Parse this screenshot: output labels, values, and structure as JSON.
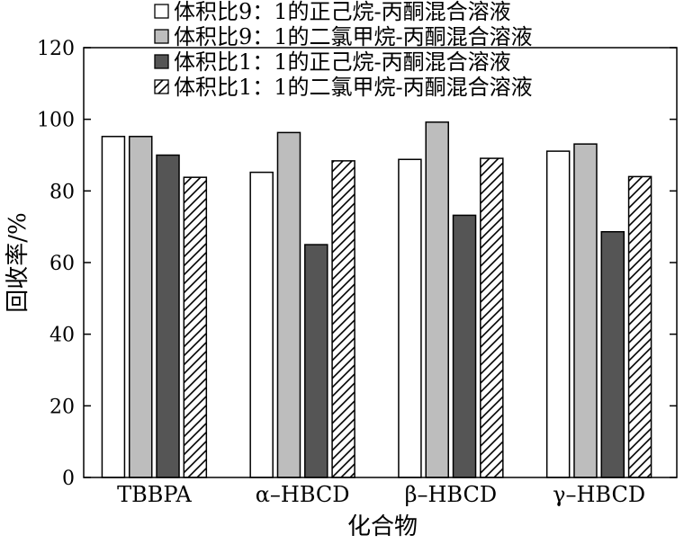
{
  "chart_data": {
    "type": "bar",
    "title": "",
    "xlabel": "化合物",
    "ylabel": "回收率/%",
    "ylim": [
      0,
      120
    ],
    "yticks": [
      0,
      20,
      40,
      60,
      80,
      100,
      120
    ],
    "grid": false,
    "legend_position": "top-right",
    "categories": [
      "TBBPA",
      "α–HBCD",
      "β–HBCD",
      "γ–HBCD"
    ],
    "series": [
      {
        "name": "体积比9：1的正己烷-丙酮混合溶液",
        "fill": "#ffffff",
        "pattern": "none",
        "values": [
          95.2,
          85.2,
          88.8,
          91.1
        ]
      },
      {
        "name": "体积比9：1的二氯甲烷-丙酮混合溶液",
        "fill": "#bdbdbd",
        "pattern": "none",
        "values": [
          95.2,
          96.3,
          99.2,
          93.1
        ]
      },
      {
        "name": "体积比1：1的正己烷-丙酮混合溶液",
        "fill": "#555555",
        "pattern": "none",
        "values": [
          90.0,
          65.0,
          73.2,
          68.6
        ]
      },
      {
        "name": "体积比1：1的二氯甲烷-丙酮混合溶液",
        "fill": "#ffffff",
        "pattern": "diagonal-hatch",
        "values": [
          83.8,
          88.4,
          89.1,
          84.0
        ]
      }
    ]
  }
}
